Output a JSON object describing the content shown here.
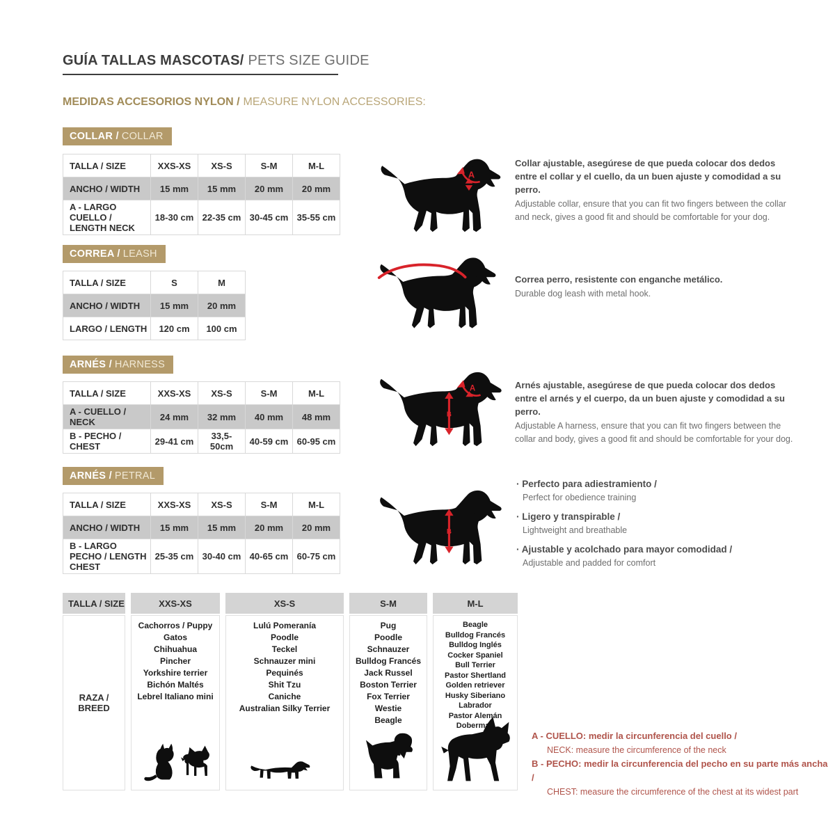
{
  "page": {
    "title_es": "GUÍA TALLAS MASCOTAS/",
    "title_en": "PETS SIZE GUIDE",
    "subtitle_es": "MEDIDAS ACCESORIOS NYLON /",
    "subtitle_en": "MEASURE NYLON ACCESSORIES:"
  },
  "colors": {
    "tan_badge": "#b39a6a",
    "shaded_row": "#c9c9c9",
    "accent_red": "#d8232a",
    "note_red": "#b0544b"
  },
  "sections": {
    "collar": {
      "badge_es": "COLLAR /",
      "badge_en": "COLLAR",
      "marker": "A",
      "table": {
        "header": [
          "TALLA / SIZE",
          "XXS-XS",
          "XS-S",
          "S-M",
          "M-L"
        ],
        "rows": [
          {
            "label": "ANCHO / WIDTH",
            "values": [
              "15 mm",
              "15 mm",
              "20 mm",
              "20 mm"
            ]
          },
          {
            "label": "A - LARGO CUELLO / LENGTH NECK",
            "values": [
              "18-30 cm",
              "22-35 cm",
              "30-45 cm",
              "35-55 cm"
            ]
          }
        ]
      },
      "description_es": "Collar ajustable, asegúrese de que pueda colocar dos dedos entre el collar y el cuello, da un buen ajuste y comodidad a su perro.",
      "description_en": "Adjustable collar, ensure that you can fit two fingers between the collar and neck, gives a good fit and should be comfortable for your dog."
    },
    "leash": {
      "badge_es": "CORREA /",
      "badge_en": "LEASH",
      "table": {
        "header": [
          "TALLA / SIZE",
          "S",
          "M"
        ],
        "rows": [
          {
            "label": "ANCHO / WIDTH",
            "values": [
              "15 mm",
              "20 mm"
            ]
          },
          {
            "label": "LARGO / LENGTH",
            "values": [
              "120 cm",
              "100 cm"
            ]
          }
        ]
      },
      "description_es": "Correa perro, resistente con enganche metálico.",
      "description_en": "Durable dog leash with metal hook."
    },
    "harness": {
      "badge_es": "ARNÉS /",
      "badge_en": "HARNESS",
      "marker_a": "A",
      "marker_b": "B",
      "table": {
        "header": [
          "TALLA / SIZE",
          "XXS-XS",
          "XS-S",
          "S-M",
          "M-L"
        ],
        "rows": [
          {
            "label": "A - CUELLO / NECK",
            "values": [
              "24 mm",
              "32 mm",
              "40 mm",
              "48 mm"
            ]
          },
          {
            "label": "B - PECHO / CHEST",
            "values": [
              "29-41 cm",
              "33,5-50cm",
              "40-59 cm",
              "60-95 cm"
            ]
          }
        ]
      },
      "description_es": "Arnés ajustable, asegúrese de que pueda colocar dos dedos entre el arnés y el cuerpo, da un buen ajuste y comodidad a su perro.",
      "description_en": "Adjustable A harness, ensure that you can fit two fingers between the collar and body, gives a good fit and should be comfortable for your dog."
    },
    "petral": {
      "badge_es": "ARNÉS /",
      "badge_en": "PETRAL",
      "marker": "B",
      "table": {
        "header": [
          "TALLA / SIZE",
          "XXS-XS",
          "XS-S",
          "S-M",
          "M-L"
        ],
        "rows": [
          {
            "label": "ANCHO / WIDTH",
            "values": [
              "15 mm",
              "15 mm",
              "20 mm",
              "20 mm"
            ]
          },
          {
            "label": "B - LARGO PECHO / LENGTH CHEST",
            "values": [
              "25-35 cm",
              "30-40 cm",
              "40-65 cm",
              "60-75 cm"
            ]
          }
        ]
      },
      "features": [
        {
          "es": "Perfecto para adiestramiento /",
          "en": "Perfect for obedience training"
        },
        {
          "es": "Ligero y transpirable /",
          "en": "Lightweight and breathable"
        },
        {
          "es": "Ajustable y acolchado para mayor comodidad /",
          "en": "Adjustable and padded for comfort"
        }
      ]
    }
  },
  "breeds_table": {
    "header": [
      "TALLA / SIZE",
      "XXS-XS",
      "XS-S",
      "S-M",
      "M-L"
    ],
    "row_label": [
      "RAZA /",
      "BREED"
    ],
    "breed_lists": [
      [
        "Cachorros / Puppy",
        "Gatos",
        "Chihuahua",
        "Pincher",
        "Yorkshire terrier",
        "Bichón Maltés",
        "Lebrel Italiano mini"
      ],
      [
        "Lulú Pomeranía",
        "Poodle",
        "Teckel",
        "Schnauzer mini",
        "Pequinés",
        "Shit Tzu",
        "Caniche",
        "Australian Silky Terrier"
      ],
      [
        "Pug",
        "Poodle",
        "Schnauzer",
        "Bulldog Francés",
        "Jack Russel",
        "Boston Terrier",
        "Fox Terrier",
        "Westie",
        "Beagle"
      ],
      [
        "Beagle",
        "Bulldog Francés",
        "Bulldog Inglés",
        "Cocker Spaniel",
        "Bull Terrier",
        "Pastor Shertland",
        "Golden retriever",
        "Husky Siberiano",
        "Labrador",
        "Pastor Alemán",
        "Doberman"
      ]
    ]
  },
  "footnotes": [
    {
      "es": "A - CUELLO: medir la circunferencia del cuello /",
      "en": "NECK: measure the circumference of the neck"
    },
    {
      "es": "B - PECHO: medir la circunferencia del pecho en su parte más ancha /",
      "en": "CHEST: measure the circumference of the chest at its widest part"
    }
  ]
}
